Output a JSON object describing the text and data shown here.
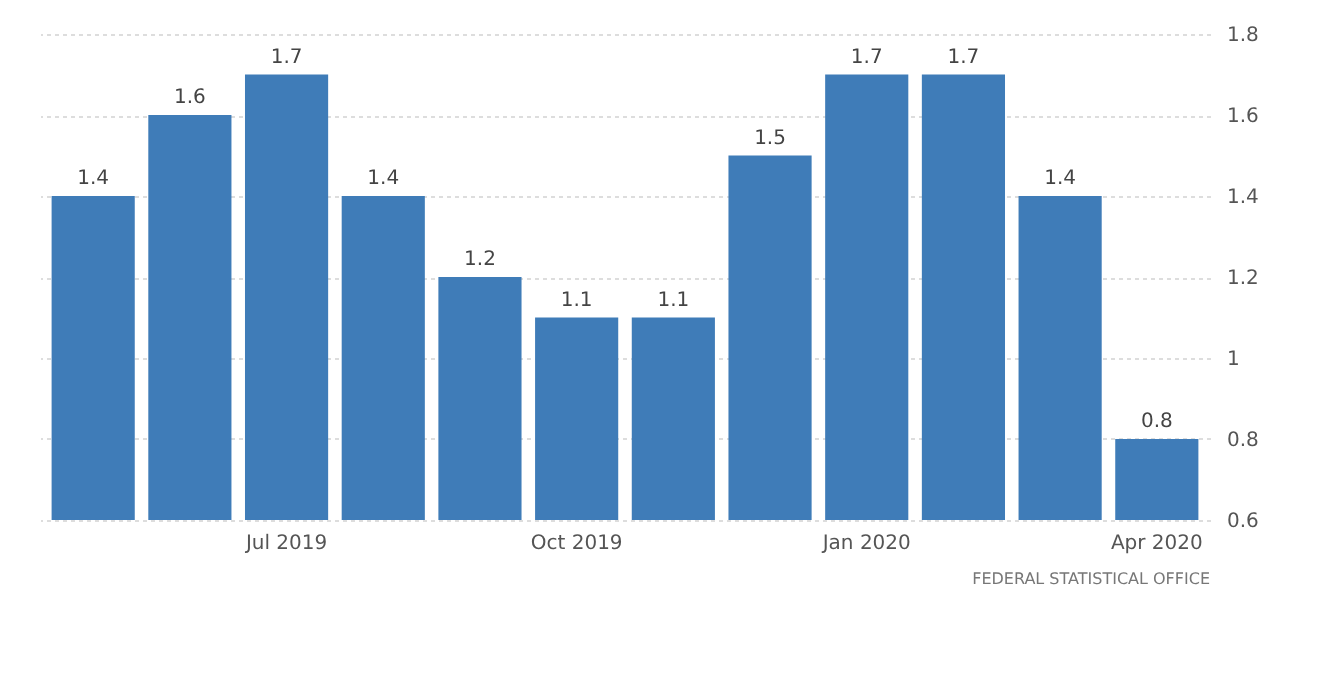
{
  "chart_data": {
    "type": "bar",
    "categories": [
      null,
      null,
      "Jul 2019",
      null,
      null,
      "Oct 2019",
      null,
      null,
      "Jan 2020",
      null,
      null,
      "Apr 2020"
    ],
    "values": [
      1.4,
      1.6,
      1.7,
      1.4,
      1.2,
      1.1,
      1.1,
      1.5,
      1.7,
      1.7,
      1.4,
      0.8
    ],
    "color": "#3f7cb8",
    "ylim": [
      0.6,
      1.8
    ],
    "yticks": [
      0.6,
      0.8,
      1,
      1.2,
      1.4,
      1.6,
      1.8
    ],
    "grid": "y",
    "data_labels": true,
    "annotations": [
      "FEDERAL STATISTICAL OFFICE"
    ]
  }
}
